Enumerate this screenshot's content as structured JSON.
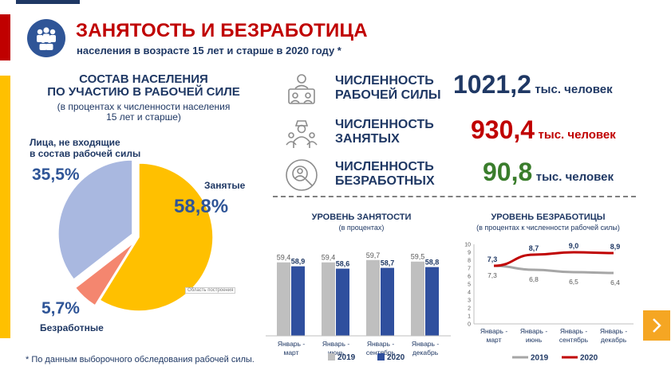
{
  "header": {
    "title": "ЗАНЯТОСТЬ И БЕЗРАБОТИЦА",
    "subtitle": "населения в возрасте 15 лет и старше в 2020 году *"
  },
  "composition": {
    "title_line1": "СОСТАВ НАСЕЛЕНИЯ",
    "title_line2": "ПО УЧАСТИЮ В РАБОЧЕЙ СИЛЕ",
    "subtitle_line1": "(в процентах к численности населения",
    "subtitle_line2": "15 лет и старше)",
    "tooltip": "Область построения"
  },
  "stats": {
    "labor_force": {
      "label_line1": "ЧИСЛЕННОСТЬ",
      "label_line2": "РАБОЧЕЙ СИЛЫ",
      "value": "1021,2",
      "unit": "тыс. человек",
      "color": "#1f3864"
    },
    "employed": {
      "label_line1": "ЧИСЛЕННОСТЬ",
      "label_line2": "ЗАНЯТЫХ",
      "value": "930,4",
      "unit": "тыс. человек",
      "color": "#c00000"
    },
    "unemployed": {
      "label_line1": "ЧИСЛЕННОСТЬ",
      "label_line2": "БЕЗРАБОТНЫХ",
      "value": "90,8",
      "unit": "тыс. человек",
      "color": "#3a7d2c"
    }
  },
  "footnote": "* По данным выборочного обследования рабочей силы.",
  "chart_data": [
    {
      "type": "pie",
      "title": "СОСТАВ НАСЕЛЕНИЯ ПО УЧАСТИЮ В РАБОЧЕЙ СИЛЕ",
      "slices": [
        {
          "name_line1": "Занятые",
          "name_line2": "",
          "value": 58.8,
          "label": "58,8%",
          "color": "#ffc000"
        },
        {
          "name_line1": "Безработные",
          "name_line2": "",
          "value": 5.7,
          "label": "5,7%",
          "color": "#f4866f"
        },
        {
          "name_line1": "Лица, не входящие",
          "name_line2": "в состав рабочей силы",
          "value": 35.5,
          "label": "35,5%",
          "color": "#a9b8e0"
        }
      ]
    },
    {
      "type": "bar",
      "title": "УРОВЕНЬ ЗАНЯТОСТИ",
      "subtitle": "(в процентах)",
      "categories": [
        {
          "line1": "Январь -",
          "line2": "март"
        },
        {
          "line1": "Январь -",
          "line2": "июнь"
        },
        {
          "line1": "Январь -",
          "line2": "сентябрь"
        },
        {
          "line1": "Январь -",
          "line2": "декабрь"
        }
      ],
      "series": [
        {
          "name": "2019",
          "values": [
            59.4,
            59.4,
            59.7,
            59.5
          ],
          "labels": [
            "59,4",
            "59,4",
            "59,7",
            "59,5"
          ],
          "color": "#bfbfbf"
        },
        {
          "name": "2020",
          "values": [
            58.9,
            58.6,
            58.7,
            58.8
          ],
          "labels": [
            "58,9",
            "58,6",
            "58,7",
            "58,8"
          ],
          "color": "#2f4f9e"
        }
      ]
    },
    {
      "type": "line",
      "title": "УРОВЕНЬ БЕЗРАБОТИЦЫ",
      "subtitle": "(в процентах к численности рабочей силы)",
      "categories": [
        {
          "line1": "Январь -",
          "line2": "март"
        },
        {
          "line1": "Январь -",
          "line2": "июнь"
        },
        {
          "line1": "Январь -",
          "line2": "сентябрь"
        },
        {
          "line1": "Январь -",
          "line2": "декабрь"
        }
      ],
      "ylim": [
        0,
        10
      ],
      "yticks": [
        "0",
        "1",
        "2",
        "3",
        "4",
        "5",
        "6",
        "7",
        "8",
        "9",
        "10"
      ],
      "series": [
        {
          "name": "2019",
          "values": [
            7.3,
            6.8,
            6.5,
            6.4
          ],
          "labels": [
            "7,3",
            "6,8",
            "6,5",
            "6,4"
          ],
          "color": "#a6a6a6"
        },
        {
          "name": "2020",
          "values": [
            7.3,
            8.7,
            9.0,
            8.9
          ],
          "labels": [
            "7,3",
            "8,7",
            "9,0",
            "8,9"
          ],
          "color": "#c00000"
        }
      ]
    }
  ]
}
